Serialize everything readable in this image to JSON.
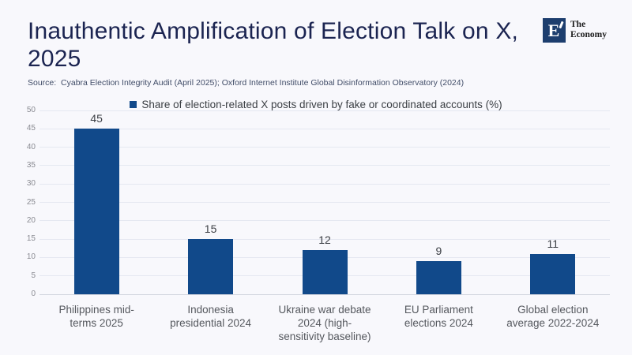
{
  "page": {
    "title_line1": "Inauthentic Amplification of Election Talk on X,",
    "title_line2": "2025",
    "source": "Source:  Cyabra Election Integrity Audit (April 2025); Oxford Internet Institute Global Disinformation Observatory (2024)"
  },
  "legend": {
    "label": "Share of election-related X posts driven by fake or coordinated accounts (%)"
  },
  "logo": {
    "mark": "E",
    "name_line1": "The",
    "name_line2": "Economy"
  },
  "colors": {
    "bar": "#11498a",
    "title_text": "#1b2451",
    "background": "#f8f8fc",
    "gridline": "#e5e8f1",
    "logo_square": "#1d3e6e"
  },
  "chart_data": {
    "type": "bar",
    "title": "Inauthentic Amplification of Election Talk on X, 2025",
    "series_label": "Share of election-related X posts driven by fake or coordinated accounts (%)",
    "categories": [
      "Philippines mid-terms 2025",
      "Indonesia presidential 2024",
      "Ukraine war debate 2024 (high-sensitivity baseline)",
      "EU Parliament elections 2024",
      "Global election average 2022-2024"
    ],
    "values": [
      45,
      15,
      12,
      9,
      11
    ],
    "xtick_lines": [
      [
        "Philippines mid-",
        "terms 2025"
      ],
      [
        "Indonesia",
        "presidential 2024"
      ],
      [
        "Ukraine war debate",
        "2024 (high-",
        "sensitivity baseline)"
      ],
      [
        "EU Parliament",
        "elections 2024"
      ],
      [
        "Global election",
        "average 2022-2024"
      ]
    ],
    "xlabel": "",
    "ylabel": "",
    "ylim": [
      0,
      50
    ],
    "ytick_step": 5,
    "grid": true,
    "legend_position": "top-center"
  }
}
